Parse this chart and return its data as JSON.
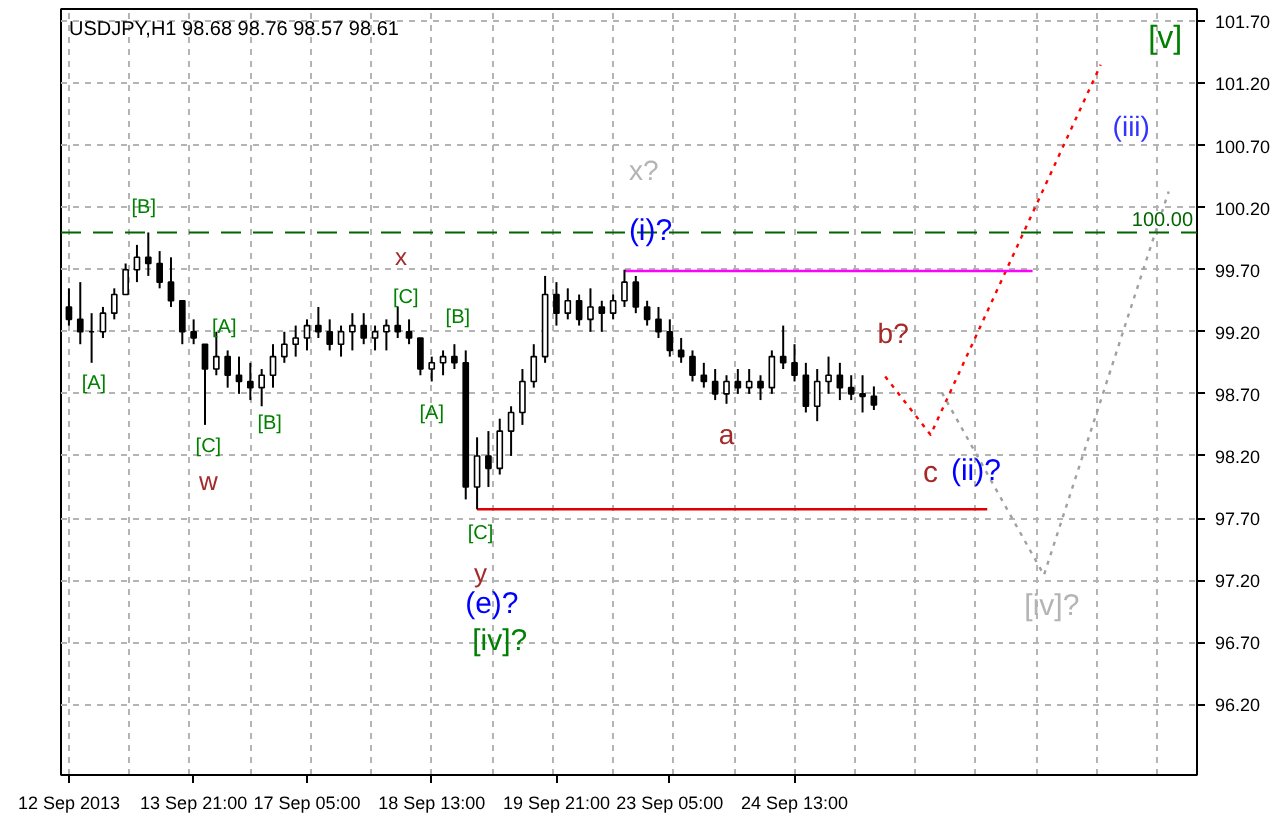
{
  "chart_data": {
    "type": "candlestick",
    "title": "USDJPY,H1  98.68 98.76 98.57 98.61",
    "categories": [
      "12 Sep 2013",
      null,
      null,
      null,
      null,
      null,
      null,
      null,
      null,
      null,
      null,
      "13 Sep 21:00",
      null,
      null,
      null,
      null,
      null,
      null,
      null,
      null,
      null,
      "17 Sep 05:00",
      null,
      null,
      null,
      null,
      null,
      null,
      null,
      null,
      null,
      null,
      "18 Sep 13:00",
      null,
      null,
      null,
      null,
      null,
      null,
      null,
      null,
      null,
      null,
      "19 Sep 21:00",
      null,
      null,
      null,
      null,
      null,
      null,
      null,
      null,
      null,
      "23 Sep 05:00",
      null,
      null,
      null,
      null,
      null,
      null,
      null,
      null,
      null,
      null,
      "24 Sep 13:00",
      null,
      null,
      null,
      null,
      null,
      null,
      null,
      null,
      null,
      null,
      null,
      null,
      null,
      null,
      null,
      null,
      null,
      null,
      null,
      null,
      null,
      null,
      null,
      null,
      null,
      null,
      null,
      null,
      null,
      null,
      null,
      null,
      null,
      null,
      null
    ],
    "ohlc": [
      [
        99.4,
        99.55,
        99.25,
        99.3
      ],
      [
        99.3,
        99.6,
        99.1,
        99.2
      ],
      [
        99.2,
        99.35,
        98.95,
        99.2
      ],
      [
        99.2,
        99.4,
        99.15,
        99.35
      ],
      [
        99.35,
        99.55,
        99.3,
        99.5
      ],
      [
        99.5,
        99.75,
        99.5,
        99.7
      ],
      [
        99.7,
        99.9,
        99.6,
        99.8
      ],
      [
        99.8,
        100.0,
        99.65,
        99.75
      ],
      [
        99.75,
        99.85,
        99.55,
        99.6
      ],
      [
        99.6,
        99.8,
        99.4,
        99.45
      ],
      [
        99.45,
        99.45,
        99.1,
        99.2
      ],
      [
        99.2,
        99.3,
        99.1,
        99.15
      ],
      [
        99.1,
        99.1,
        98.45,
        98.9
      ],
      [
        98.9,
        99.2,
        98.85,
        99.0
      ],
      [
        99.0,
        99.05,
        98.75,
        98.85
      ],
      [
        98.85,
        99.0,
        98.7,
        98.8
      ],
      [
        98.8,
        98.95,
        98.65,
        98.75
      ],
      [
        98.75,
        98.9,
        98.6,
        98.85
      ],
      [
        98.85,
        99.1,
        98.75,
        99.0
      ],
      [
        99.0,
        99.2,
        98.95,
        99.1
      ],
      [
        99.1,
        99.25,
        99.0,
        99.15
      ],
      [
        99.15,
        99.3,
        99.05,
        99.25
      ],
      [
        99.25,
        99.4,
        99.15,
        99.2
      ],
      [
        99.2,
        99.3,
        99.05,
        99.1
      ],
      [
        99.1,
        99.25,
        99.0,
        99.2
      ],
      [
        99.2,
        99.35,
        99.05,
        99.25
      ],
      [
        99.25,
        99.35,
        99.1,
        99.15
      ],
      [
        99.15,
        99.25,
        99.05,
        99.2
      ],
      [
        99.2,
        99.3,
        99.05,
        99.25
      ],
      [
        99.25,
        99.4,
        99.15,
        99.2
      ],
      [
        99.2,
        99.3,
        99.1,
        99.15
      ],
      [
        99.15,
        99.15,
        98.85,
        98.9
      ],
      [
        98.9,
        99.0,
        98.8,
        98.95
      ],
      [
        98.95,
        99.05,
        98.85,
        99.0
      ],
      [
        99.0,
        99.1,
        98.9,
        98.95
      ],
      [
        98.95,
        99.05,
        97.85,
        97.95
      ],
      [
        97.95,
        98.35,
        97.77,
        98.2
      ],
      [
        98.2,
        98.4,
        97.95,
        98.1
      ],
      [
        98.1,
        98.5,
        98.05,
        98.4
      ],
      [
        98.4,
        98.6,
        98.2,
        98.55
      ],
      [
        98.55,
        98.9,
        98.45,
        98.8
      ],
      [
        98.8,
        99.1,
        98.75,
        99.0
      ],
      [
        99.0,
        99.65,
        98.95,
        99.5
      ],
      [
        99.5,
        99.6,
        99.25,
        99.35
      ],
      [
        99.35,
        99.55,
        99.3,
        99.45
      ],
      [
        99.45,
        99.5,
        99.25,
        99.3
      ],
      [
        99.3,
        99.55,
        99.2,
        99.4
      ],
      [
        99.4,
        99.45,
        99.2,
        99.35
      ],
      [
        99.35,
        99.5,
        99.3,
        99.45
      ],
      [
        99.45,
        99.7,
        99.4,
        99.6
      ],
      [
        99.6,
        99.65,
        99.35,
        99.4
      ],
      [
        99.4,
        99.45,
        99.25,
        99.3
      ],
      [
        99.3,
        99.4,
        99.15,
        99.2
      ],
      [
        99.2,
        99.3,
        99.0,
        99.05
      ],
      [
        99.05,
        99.15,
        98.95,
        99.0
      ],
      [
        99.0,
        99.05,
        98.8,
        98.85
      ],
      [
        98.85,
        98.95,
        98.75,
        98.8
      ],
      [
        98.8,
        98.9,
        98.65,
        98.7
      ],
      [
        98.7,
        98.85,
        98.62,
        98.8
      ],
      [
        98.8,
        98.9,
        98.7,
        98.75
      ],
      [
        98.75,
        98.9,
        98.7,
        98.8
      ],
      [
        98.8,
        98.85,
        98.65,
        98.75
      ],
      [
        98.75,
        99.05,
        98.7,
        99.0
      ],
      [
        99.0,
        99.25,
        98.9,
        98.95
      ],
      [
        98.95,
        99.1,
        98.8,
        98.85
      ],
      [
        98.85,
        98.95,
        98.55,
        98.6
      ],
      [
        98.6,
        98.9,
        98.48,
        98.8
      ],
      [
        98.8,
        99.0,
        98.7,
        98.85
      ],
      [
        98.85,
        98.95,
        98.65,
        98.75
      ],
      [
        98.75,
        98.85,
        98.65,
        98.7
      ],
      [
        98.7,
        98.85,
        98.55,
        98.68
      ],
      [
        98.68,
        98.76,
        98.57,
        98.61
      ],
      null,
      null,
      null,
      null,
      null,
      null,
      null,
      null,
      null,
      null,
      null,
      null,
      null,
      null,
      null,
      null,
      null,
      null,
      null,
      null,
      null,
      null,
      null,
      null,
      null,
      null,
      null,
      null
    ],
    "color": "#000000",
    "series": [
      {
        "type": "line",
        "color": "#ff0000",
        "line_style": "dotted",
        "values": [
          null,
          null,
          null,
          null,
          null,
          null,
          null,
          null,
          null,
          null,
          null,
          null,
          null,
          null,
          null,
          null,
          null,
          null,
          null,
          null,
          null,
          null,
          null,
          null,
          null,
          null,
          null,
          null,
          null,
          null,
          null,
          null,
          null,
          null,
          null,
          null,
          null,
          null,
          null,
          null,
          null,
          null,
          null,
          null,
          null,
          null,
          null,
          null,
          null,
          null,
          null,
          null,
          null,
          null,
          null,
          null,
          null,
          null,
          null,
          null,
          null,
          null,
          null,
          null,
          null,
          null,
          null,
          null,
          null,
          null,
          null,
          null,
          98.84,
          null,
          null,
          null,
          98.37,
          null,
          null,
          null,
          null,
          null,
          null,
          null,
          null,
          null,
          null,
          null,
          null,
          null,
          null,
          101.35,
          null,
          null,
          null,
          null,
          null,
          null,
          null,
          null
        ]
      },
      {
        "type": "line",
        "color": "#a0a0a0",
        "line_style": "dotted",
        "values": [
          null,
          null,
          null,
          null,
          null,
          null,
          null,
          null,
          null,
          null,
          null,
          null,
          null,
          null,
          null,
          null,
          null,
          null,
          null,
          null,
          null,
          null,
          null,
          null,
          null,
          null,
          null,
          null,
          null,
          null,
          null,
          null,
          null,
          null,
          null,
          null,
          null,
          null,
          null,
          null,
          null,
          null,
          null,
          null,
          null,
          null,
          null,
          null,
          null,
          null,
          null,
          null,
          null,
          null,
          null,
          null,
          null,
          null,
          null,
          null,
          null,
          null,
          null,
          null,
          null,
          null,
          null,
          null,
          null,
          null,
          null,
          null,
          null,
          null,
          null,
          null,
          null,
          98.71,
          null,
          null,
          null,
          null,
          null,
          null,
          null,
          null,
          97.24,
          null,
          null,
          null,
          null,
          null,
          null,
          null,
          null,
          null,
          null,
          100.33,
          null,
          null
        ]
      },
      {
        "type": "line",
        "color": "#ff00ff",
        "line_style": "solid",
        "values": [
          null,
          null,
          null,
          null,
          null,
          null,
          null,
          null,
          null,
          null,
          null,
          null,
          null,
          null,
          null,
          null,
          null,
          null,
          null,
          null,
          null,
          null,
          null,
          null,
          null,
          null,
          null,
          null,
          null,
          null,
          null,
          null,
          null,
          null,
          null,
          null,
          null,
          null,
          null,
          null,
          null,
          null,
          null,
          null,
          null,
          null,
          null,
          null,
          null,
          99.69,
          99.69,
          99.69,
          99.69,
          99.69,
          99.69,
          99.69,
          99.69,
          99.69,
          99.69,
          99.69,
          99.69,
          99.69,
          99.69,
          99.69,
          99.69,
          99.69,
          99.69,
          99.69,
          99.69,
          99.69,
          99.69,
          99.69,
          99.69,
          99.69,
          99.69,
          99.69,
          99.69,
          99.69,
          99.69,
          99.69,
          99.69,
          99.69,
          99.69,
          99.69,
          99.69,
          99.69,
          null,
          null,
          null,
          null,
          null,
          null,
          null,
          null,
          null,
          null,
          null,
          null,
          null,
          null
        ]
      },
      {
        "type": "line",
        "color": "#dd0000",
        "line_style": "solid",
        "values": [
          null,
          null,
          null,
          null,
          null,
          null,
          null,
          null,
          null,
          null,
          null,
          null,
          null,
          null,
          null,
          null,
          null,
          null,
          null,
          null,
          null,
          null,
          null,
          null,
          null,
          null,
          null,
          null,
          null,
          null,
          null,
          null,
          null,
          null,
          null,
          null,
          97.77,
          97.77,
          97.77,
          97.77,
          97.77,
          97.77,
          97.77,
          97.77,
          97.77,
          97.77,
          97.77,
          97.77,
          97.77,
          97.77,
          97.77,
          97.77,
          97.77,
          97.77,
          97.77,
          97.77,
          97.77,
          97.77,
          97.77,
          97.77,
          97.77,
          97.77,
          97.77,
          97.77,
          97.77,
          97.77,
          97.77,
          97.77,
          97.77,
          97.77,
          97.77,
          97.77,
          97.77,
          97.77,
          97.77,
          97.77,
          97.77,
          97.77,
          97.77,
          97.77,
          97.77,
          97.77,
          null,
          null,
          null,
          null,
          null,
          null,
          null,
          null,
          null,
          null,
          null,
          null,
          null,
          null,
          null,
          null,
          null,
          null
        ]
      }
    ],
    "ref_lines": [
      {
        "axis": "y",
        "value": 100.0,
        "label": "100.00",
        "color": "#006400",
        "line_style": "dashed"
      }
    ],
    "annotations": [
      "[B]",
      "[A]",
      "[A]",
      "[C]",
      "w",
      "[B]",
      "x",
      "[C]",
      "[B]",
      "[A]",
      "[C]",
      "y",
      "(e)?",
      "[iv]?",
      "x?",
      "(i)?",
      "b?",
      "a",
      "c",
      "(ii)?",
      "[iv]?",
      "(iii)",
      "[v]"
    ],
    "ylim": [
      95.63,
      101.8
    ],
    "yticks": [
      {
        "value": 96.2,
        "label": "96.20"
      },
      {
        "value": 96.7,
        "label": "96.70"
      },
      {
        "value": 97.2,
        "label": "97.20"
      },
      {
        "value": 97.7,
        "label": "97.70"
      },
      {
        "value": 98.2,
        "label": "98.20"
      },
      {
        "value": 98.7,
        "label": "98.70"
      },
      {
        "value": 99.2,
        "label": "99.20"
      },
      {
        "value": 99.7,
        "label": "99.70"
      },
      {
        "value": 100.2,
        "label": "100.20"
      },
      {
        "value": 100.7,
        "label": "100.70"
      },
      {
        "value": 101.2,
        "label": "101.20"
      },
      {
        "value": 101.7,
        "label": "101.70"
      }
    ],
    "grid": true
  }
}
